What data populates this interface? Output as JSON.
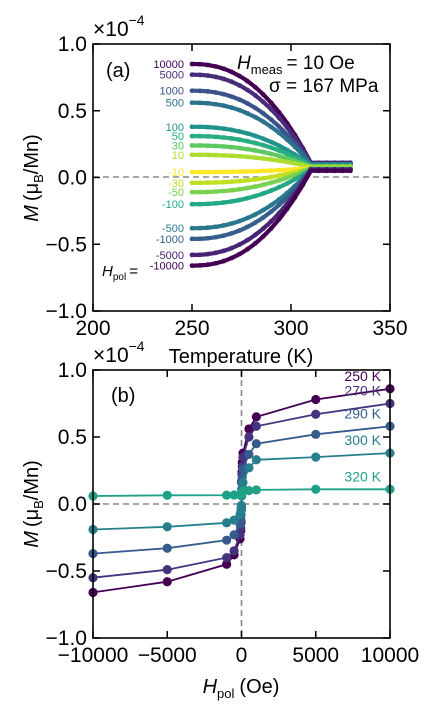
{
  "panel_a": {
    "panel_label": "(a)",
    "multiplier": "×10",
    "exponent": "−4",
    "xlabel": "Temperature (K)",
    "ylabel_main": "M",
    "ylabel_paren_open": "(μ",
    "ylabel_sub": "B",
    "ylabel_tail": "/Mn)",
    "hmeas_main": "H",
    "hmeas_sub": "meas",
    "hmeas_value": "= 10 Oe",
    "sigma_text": "σ = 167 MPa",
    "hpol_main": "H",
    "hpol_sub": "pol",
    "hpol_eq": "="
  },
  "panel_b": {
    "panel_label": "(b)",
    "multiplier": "×10",
    "exponent": "−4",
    "xlabel_main": "H",
    "xlabel_sub": "pol",
    "xlabel_tail": "(Oe)",
    "ylabel_main": "M",
    "ylabel_paren_open": "(μ",
    "ylabel_sub": "B",
    "ylabel_tail": "/Mn)"
  },
  "chart_data": [
    {
      "type": "line",
      "panel": "a",
      "xlim": [
        200,
        350
      ],
      "ylim": [
        -1.0,
        1.0
      ],
      "y_scale_note": "×10−4",
      "x_ticks": [
        "200",
        "250",
        "300",
        "350"
      ],
      "y_ticks": [
        "−1.0",
        "−0.5",
        "0.0",
        "0.5",
        "1.0"
      ],
      "grid": false,
      "reference_line_y": 0.0,
      "x_start": 250,
      "x_merge": 310,
      "x_end": 330,
      "series": [
        {
          "name": "10000",
          "color": "#440154",
          "y_start": 0.85,
          "y_end": 0.11
        },
        {
          "name": "5000",
          "color": "#472c7a",
          "y_start": 0.77,
          "y_end": 0.11
        },
        {
          "name": "1000",
          "color": "#3b528b",
          "y_start": 0.65,
          "y_end": 0.1
        },
        {
          "name": "500",
          "color": "#2c728e",
          "y_start": 0.56,
          "y_end": 0.1
        },
        {
          "name": "100",
          "color": "#21918c",
          "y_start": 0.38,
          "y_end": 0.09
        },
        {
          "name": "50",
          "color": "#28ae80",
          "y_start": 0.31,
          "y_end": 0.09
        },
        {
          "name": "30",
          "color": "#5ec962",
          "y_start": 0.24,
          "y_end": 0.08
        },
        {
          "name": "10",
          "color": "#addc30",
          "y_start": 0.17,
          "y_end": 0.08
        },
        {
          "name": "-10",
          "color": "#fde725",
          "y_start": 0.04,
          "y_end": 0.07
        },
        {
          "name": "-30",
          "color": "#c2df23",
          "y_start": -0.04,
          "y_end": 0.07
        },
        {
          "name": "-50",
          "color": "#7ad151",
          "y_start": -0.11,
          "y_end": 0.07
        },
        {
          "name": "-100",
          "color": "#22a884",
          "y_start": -0.2,
          "y_end": 0.06
        },
        {
          "name": "-500",
          "color": "#2a788e",
          "y_start": -0.38,
          "y_end": 0.06
        },
        {
          "name": "-1000",
          "color": "#355f8d",
          "y_start": -0.46,
          "y_end": 0.06
        },
        {
          "name": "-5000",
          "color": "#482475",
          "y_start": -0.58,
          "y_end": 0.06
        },
        {
          "name": "-10000",
          "color": "#440154",
          "y_start": -0.66,
          "y_end": 0.05
        }
      ]
    },
    {
      "type": "line",
      "panel": "b",
      "xlim": [
        -10000,
        10000
      ],
      "ylim": [
        -1.0,
        1.0
      ],
      "y_scale_note": "×10−4",
      "x_ticks": [
        "−10000",
        "−5000",
        "0",
        "5000",
        "10000"
      ],
      "y_ticks": [
        "−1.0",
        "−0.5",
        "0.0",
        "0.5",
        "1.0"
      ],
      "grid": false,
      "reference_lines": {
        "y": 0.0,
        "x": 0
      },
      "x": [
        -10000,
        -5000,
        -1000,
        -500,
        -100,
        -50,
        -30,
        -10,
        10,
        30,
        50,
        100,
        500,
        1000,
        5000,
        10000
      ],
      "series": [
        {
          "name": "250 K",
          "color": "#440154",
          "values": [
            -0.66,
            -0.58,
            -0.45,
            -0.38,
            -0.26,
            -0.2,
            -0.14,
            -0.04,
            0.17,
            0.24,
            0.31,
            0.38,
            0.56,
            0.65,
            0.78,
            0.86
          ]
        },
        {
          "name": "270 K",
          "color": "#46337e",
          "values": [
            -0.55,
            -0.49,
            -0.4,
            -0.35,
            -0.23,
            -0.18,
            -0.13,
            -0.04,
            0.16,
            0.22,
            0.28,
            0.35,
            0.5,
            0.58,
            0.67,
            0.75
          ]
        },
        {
          "name": "290 K",
          "color": "#365c8d",
          "values": [
            -0.37,
            -0.33,
            -0.27,
            -0.23,
            -0.15,
            -0.11,
            -0.08,
            -0.02,
            0.11,
            0.16,
            0.2,
            0.26,
            0.37,
            0.45,
            0.52,
            0.58
          ]
        },
        {
          "name": "300 K",
          "color": "#277f8e",
          "values": [
            -0.19,
            -0.17,
            -0.14,
            -0.12,
            -0.08,
            -0.06,
            -0.04,
            -0.01,
            0.06,
            0.09,
            0.12,
            0.16,
            0.27,
            0.33,
            0.35,
            0.38
          ]
        },
        {
          "name": "320 K",
          "color": "#1fa187",
          "values": [
            0.06,
            0.065,
            0.066,
            0.067,
            0.068,
            0.069,
            0.07,
            0.07,
            0.08,
            0.085,
            0.09,
            0.095,
            0.1,
            0.105,
            0.11,
            0.11
          ]
        }
      ]
    }
  ]
}
